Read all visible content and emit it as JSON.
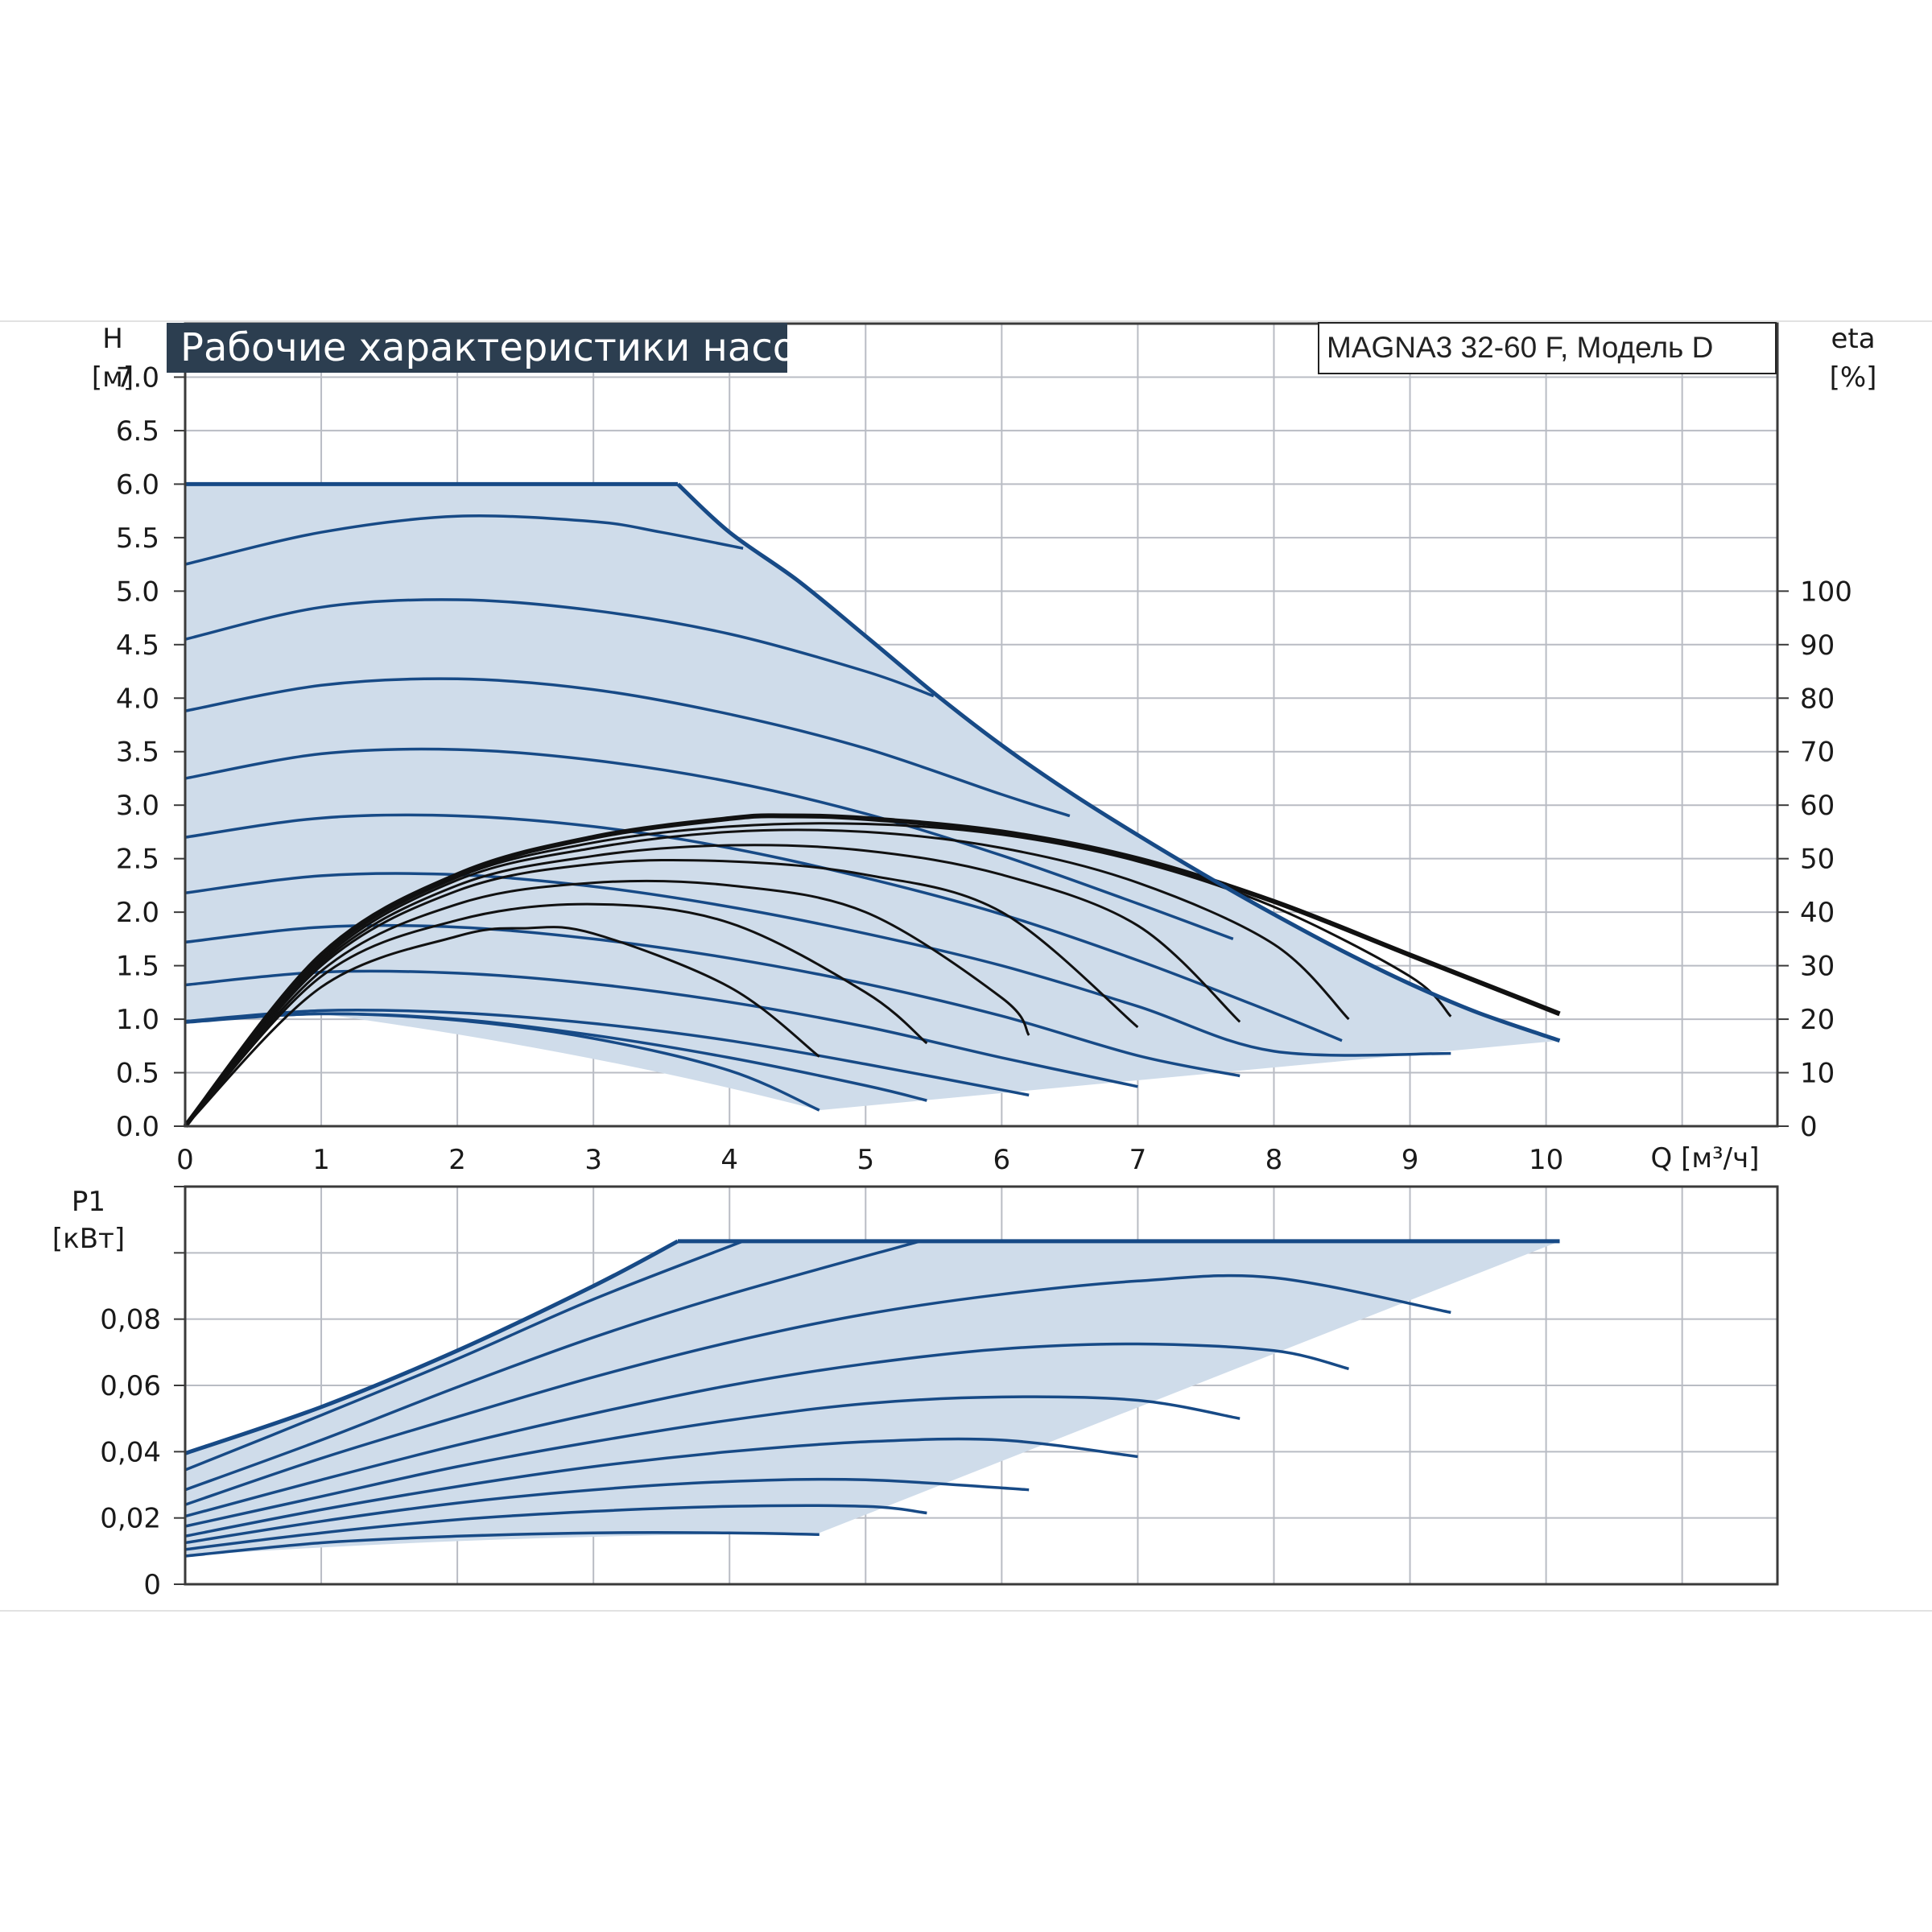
{
  "chart_data": [
    {
      "type": "line",
      "title": "Рабочие характеристики насоса",
      "model": "MAGNA3 32-60 F, Модель D",
      "ylabel_left": "H",
      "ylabel_left_unit": "[м]",
      "ylabel_right": "eta",
      "ylabel_right_unit": "[%]",
      "xlabel": "Q [м³/ч]",
      "xlim": [
        0,
        11.7
      ],
      "ylim": [
        0,
        7.5
      ],
      "x_ticks": [
        "0",
        "1",
        "2",
        "3",
        "4",
        "5",
        "6",
        "7",
        "8",
        "9",
        "10"
      ],
      "y_ticks": [
        "0.0",
        "0.5",
        "1.0",
        "1.5",
        "2.0",
        "2.5",
        "3.0",
        "3.5",
        "4.0",
        "4.5",
        "5.0",
        "5.5",
        "6.0",
        "6.5",
        "7.0"
      ],
      "y_right_ticks": [
        "0",
        "10",
        "20",
        "30",
        "40",
        "50",
        "60",
        "70",
        "80",
        "90",
        "100"
      ],
      "colors": {
        "envelope": "#174a86",
        "head_curve": "#174a86",
        "efficiency": "#111111",
        "fill": "#cfdcea",
        "title_bg": "#2c3e50"
      },
      "envelope": {
        "x": [
          0,
          3.62,
          4.0,
          4.5,
          5.0,
          5.5,
          6.0,
          6.5,
          7.0,
          7.5,
          8.0,
          8.5,
          9.0,
          9.5,
          10.1
        ],
        "y": [
          6.0,
          6.0,
          5.55,
          5.1,
          4.58,
          4.05,
          3.56,
          3.12,
          2.72,
          2.34,
          1.98,
          1.64,
          1.33,
          1.06,
          0.8
        ],
        "bottom_x": [
          10.1,
          4.66
        ],
        "bottom_y": [
          0.8,
          0.15
        ]
      },
      "head_series": [
        {
          "x": [
            0,
            1,
            2,
            3,
            3.5,
            4.1
          ],
          "y": [
            5.25,
            5.55,
            5.7,
            5.65,
            5.55,
            5.4
          ]
        },
        {
          "x": [
            0,
            1,
            2,
            3,
            4,
            5,
            5.5
          ],
          "y": [
            4.55,
            4.85,
            4.92,
            4.82,
            4.6,
            4.25,
            4.02
          ]
        },
        {
          "x": [
            0,
            1,
            2,
            3,
            4,
            5,
            6,
            6.5
          ],
          "y": [
            3.88,
            4.12,
            4.18,
            4.08,
            3.85,
            3.53,
            3.1,
            2.9
          ]
        },
        {
          "x": [
            0,
            1,
            2,
            3,
            4,
            5,
            6,
            7,
            7.7
          ],
          "y": [
            3.25,
            3.48,
            3.52,
            3.42,
            3.22,
            2.92,
            2.53,
            2.08,
            1.75
          ]
        },
        {
          "x": [
            0,
            1,
            2,
            3,
            4,
            5,
            6,
            7,
            8,
            8.5
          ],
          "y": [
            2.7,
            2.88,
            2.9,
            2.8,
            2.6,
            2.32,
            1.98,
            1.55,
            1.06,
            0.8
          ]
        },
        {
          "x": [
            0,
            1,
            2,
            3,
            4,
            5,
            6,
            7,
            8,
            9.3
          ],
          "y": [
            2.18,
            2.34,
            2.35,
            2.24,
            2.05,
            1.8,
            1.5,
            1.12,
            0.7,
            0.68
          ]
        },
        {
          "x": [
            0,
            1,
            2,
            3,
            4,
            5,
            6,
            7,
            7.75
          ],
          "y": [
            1.72,
            1.86,
            1.86,
            1.75,
            1.57,
            1.33,
            1.03,
            0.66,
            0.47
          ]
        },
        {
          "x": [
            0,
            1,
            2,
            3,
            4,
            5,
            6,
            7
          ],
          "y": [
            1.32,
            1.44,
            1.43,
            1.33,
            1.16,
            0.93,
            0.64,
            0.37
          ]
        },
        {
          "x": [
            0,
            1,
            2,
            3,
            4,
            5,
            6.2
          ],
          "y": [
            0.98,
            1.08,
            1.06,
            0.96,
            0.8,
            0.58,
            0.29
          ]
        },
        {
          "x": [
            0,
            1,
            2,
            3,
            4,
            5,
            5.45
          ],
          "y": [
            0.98,
            1.05,
            1.0,
            0.85,
            0.64,
            0.38,
            0.24
          ]
        },
        {
          "x": [
            0,
            1,
            2,
            3,
            4,
            4.66
          ],
          "y": [
            0.97,
            1.05,
            0.99,
            0.82,
            0.52,
            0.15
          ]
        }
      ],
      "efficiency_series": [
        {
          "x": [
            0,
            1,
            2,
            3,
            4,
            4.4,
            5,
            6,
            7,
            8,
            9,
            10.1
          ],
          "y": [
            0,
            32,
            47,
            54,
            57.5,
            58,
            57.5,
            55,
            50,
            42,
            32,
            21
          ]
        },
        {
          "x": [
            0,
            1,
            2,
            3,
            4,
            5,
            6,
            7,
            8,
            9,
            9.3
          ],
          "y": [
            0,
            31.5,
            46.5,
            53,
            56,
            56.5,
            54.5,
            49.5,
            41,
            28,
            20.5
          ]
        },
        {
          "x": [
            0,
            1,
            2,
            3,
            4,
            5,
            6,
            7,
            8,
            8.55
          ],
          "y": [
            0,
            31,
            46,
            52,
            55,
            55,
            52,
            45.5,
            34,
            20
          ]
        },
        {
          "x": [
            0,
            1,
            2,
            3,
            4,
            5,
            6,
            7,
            7.75
          ],
          "y": [
            0,
            30.5,
            45,
            50.5,
            52.5,
            51.5,
            47,
            37.5,
            19.5
          ]
        },
        {
          "x": [
            0,
            1,
            2,
            3,
            4,
            5,
            6,
            7
          ],
          "y": [
            0,
            30,
            44,
            49,
            49.5,
            47,
            40,
            18.5
          ]
        },
        {
          "x": [
            0,
            1,
            2,
            3,
            4,
            5,
            6,
            6.2
          ],
          "y": [
            0,
            29,
            41.5,
            45.5,
            45,
            40,
            24,
            17
          ]
        },
        {
          "x": [
            0,
            1,
            2,
            3,
            4,
            5,
            5.45
          ],
          "y": [
            0,
            28,
            38.5,
            41.5,
            38,
            25,
            15.5
          ]
        },
        {
          "x": [
            0,
            1,
            2,
            2.5,
            3,
            4,
            4.66
          ],
          "y": [
            0,
            26,
            35.5,
            37,
            36,
            26,
            13
          ]
        }
      ],
      "eta_range": [
        0,
        100
      ],
      "eta_axis_h_at_100": 5.0,
      "grid": true
    },
    {
      "type": "line",
      "ylabel": "P1",
      "ylabel_unit": "[кВт]",
      "ylim": [
        0,
        0.12
      ],
      "y_ticks": [
        "0",
        "0,02",
        "0,04",
        "0,06",
        "0,08"
      ],
      "y_tick_values": [
        0,
        0.02,
        0.04,
        0.06,
        0.08
      ],
      "envelope": {
        "x": [
          0,
          1,
          2,
          3,
          3.62,
          10.1
        ],
        "y": [
          0.0395,
          0.0535,
          0.0705,
          0.09,
          0.1035,
          0.1035
        ],
        "bottom_x": [
          10.1,
          4.66,
          0
        ],
        "bottom_y": [
          0.1035,
          0.0155,
          0.0085
        ]
      },
      "power_series": [
        {
          "x": [
            0,
            1,
            2,
            3,
            4.1
          ],
          "y": [
            0.0345,
            0.051,
            0.068,
            0.086,
            0.1035
          ]
        },
        {
          "x": [
            0,
            1,
            2,
            3,
            4,
            5.4
          ],
          "y": [
            0.0285,
            0.0435,
            0.0595,
            0.0745,
            0.0875,
            0.1035
          ]
        },
        {
          "x": [
            0,
            1,
            2,
            3,
            4,
            5,
            6,
            7,
            8,
            9.3
          ],
          "y": [
            0.024,
            0.038,
            0.0505,
            0.0625,
            0.073,
            0.0815,
            0.0875,
            0.0915,
            0.0925,
            0.082
          ]
        },
        {
          "x": [
            0,
            1,
            2,
            3,
            4,
            5,
            6,
            7,
            8,
            8.55
          ],
          "y": [
            0.0205,
            0.0315,
            0.042,
            0.0515,
            0.06,
            0.0665,
            0.071,
            0.0725,
            0.0705,
            0.065
          ]
        },
        {
          "x": [
            0,
            1,
            2,
            3,
            4,
            5,
            6,
            7,
            7.75
          ],
          "y": [
            0.0175,
            0.0265,
            0.0355,
            0.043,
            0.0495,
            0.0545,
            0.0565,
            0.0555,
            0.05
          ]
        },
        {
          "x": [
            0,
            1,
            2,
            3,
            4,
            5,
            6,
            7
          ],
          "y": [
            0.0145,
            0.0225,
            0.0295,
            0.0355,
            0.04,
            0.043,
            0.0435,
            0.0385
          ]
        },
        {
          "x": [
            0,
            1,
            2,
            3,
            4,
            5,
            6.2
          ],
          "y": [
            0.0125,
            0.019,
            0.0245,
            0.0285,
            0.031,
            0.0315,
            0.0285
          ]
        },
        {
          "x": [
            0,
            1,
            2,
            3,
            4,
            5,
            5.45
          ],
          "y": [
            0.0105,
            0.0155,
            0.0195,
            0.022,
            0.0235,
            0.0235,
            0.0215
          ]
        },
        {
          "x": [
            0,
            1,
            2,
            3,
            4,
            4.66
          ],
          "y": [
            0.0085,
            0.0125,
            0.0145,
            0.0155,
            0.0155,
            0.015
          ]
        }
      ],
      "grid": true
    }
  ]
}
